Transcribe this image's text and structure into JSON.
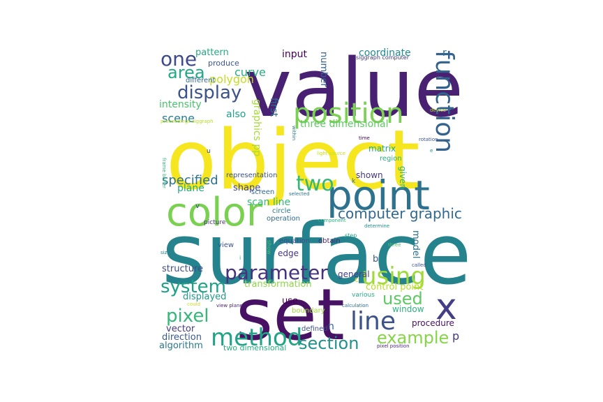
{
  "words": [
    {
      "text": "value",
      "color": "#482173"
    },
    {
      "text": "object",
      "color": "#f6e620"
    },
    {
      "text": "surface",
      "color": "#25838e"
    },
    {
      "text": "set",
      "color": "#471164"
    },
    {
      "text": "point",
      "color": "#2c728e"
    },
    {
      "text": "color",
      "color": "#7ad151"
    },
    {
      "text": "position",
      "color": "#7ad151"
    },
    {
      "text": "function",
      "color": "#33638d"
    },
    {
      "text": "one",
      "color": "#3e4a89"
    },
    {
      "text": "area",
      "color": "#22a884"
    },
    {
      "text": "display",
      "color": "#3b528b"
    },
    {
      "text": "using",
      "color": "#a0da39"
    },
    {
      "text": "x",
      "color": "#433e85"
    },
    {
      "text": "line",
      "color": "#3b528b"
    },
    {
      "text": "method",
      "color": "#20a486"
    },
    {
      "text": "parameter",
      "color": "#46327e"
    },
    {
      "text": "system",
      "color": "#1fa187"
    },
    {
      "text": "pixel",
      "color": "#35b779"
    },
    {
      "text": "two",
      "color": "#35b779"
    },
    {
      "text": "section",
      "color": "#21918c"
    },
    {
      "text": "example",
      "color": "#86d549"
    },
    {
      "text": "used",
      "color": "#5ec962"
    },
    {
      "text": "computer graphic",
      "color": "#31688e"
    },
    {
      "text": "specified",
      "color": "#2c728e"
    },
    {
      "text": "curve",
      "color": "#29af7f"
    },
    {
      "text": "scene",
      "color": "#287d8e"
    },
    {
      "text": "polygon",
      "color": "#c2df23"
    },
    {
      "text": "intensity",
      "color": "#4ac16d"
    },
    {
      "text": "coordinate",
      "color": "#238a8d"
    },
    {
      "text": "input",
      "color": "#440154"
    },
    {
      "text": "pattern",
      "color": "#25ab82"
    },
    {
      "text": "produce",
      "color": "#39568c"
    },
    {
      "text": "different",
      "color": "#31688e"
    },
    {
      "text": "also",
      "color": "#1fa088"
    },
    {
      "text": "graphics pp",
      "color": "#a5db36"
    },
    {
      "text": "first",
      "color": "#2d708e"
    },
    {
      "text": "number",
      "color": "#34618d"
    },
    {
      "text": "three dimensional",
      "color": "#5ec962"
    },
    {
      "text": "matrix",
      "color": "#22a884"
    },
    {
      "text": "region",
      "color": "#29af7f"
    },
    {
      "text": "shown",
      "color": "#443983"
    },
    {
      "text": "given",
      "color": "#2db27d"
    },
    {
      "text": "scan line",
      "color": "#35b779"
    },
    {
      "text": "plane",
      "color": "#22a884"
    },
    {
      "text": "shape",
      "color": "#414487"
    },
    {
      "text": "representation",
      "color": "#3b528b"
    },
    {
      "text": "screen",
      "color": "#31688e"
    },
    {
      "text": "selected",
      "color": "#2c728e"
    },
    {
      "text": "circle",
      "color": "#2a788e"
    },
    {
      "text": "operation",
      "color": "#2f6c8e"
    },
    {
      "text": "picture",
      "color": "#46337f"
    },
    {
      "text": "component",
      "color": "#2ab07f"
    },
    {
      "text": "determine",
      "color": "#21918c"
    },
    {
      "text": "step",
      "color": "#1fa088"
    },
    {
      "text": "model",
      "color": "#2c728e"
    },
    {
      "text": "view",
      "color": "#3a548c"
    },
    {
      "text": "equation",
      "color": "#3d4d8a"
    },
    {
      "text": "obtain",
      "color": "#482576"
    },
    {
      "text": "edge",
      "color": "#453581"
    },
    {
      "text": "structure",
      "color": "#3e4c8a"
    },
    {
      "text": "transformation",
      "color": "#8ed645"
    },
    {
      "text": "general",
      "color": "#424086"
    },
    {
      "text": "b",
      "color": "#39568c"
    },
    {
      "text": "c",
      "color": "#c8e020"
    },
    {
      "text": "control point",
      "color": "#b8de29"
    },
    {
      "text": "various",
      "color": "#25ac82"
    },
    {
      "text": "displayed",
      "color": "#1f9a8a"
    },
    {
      "text": "use",
      "color": "#440154"
    },
    {
      "text": "could",
      "color": "#c0df25"
    },
    {
      "text": "view plane",
      "color": "#482475"
    },
    {
      "text": "boundary",
      "color": "#9dd93b"
    },
    {
      "text": "calculation",
      "color": "#2e6e8e"
    },
    {
      "text": "window",
      "color": "#2db27d"
    },
    {
      "text": "vector",
      "color": "#453882"
    },
    {
      "text": "direction",
      "color": "#38598c"
    },
    {
      "text": "algorithm",
      "color": "#2a788e"
    },
    {
      "text": "two dimensional",
      "color": "#29af7f"
    },
    {
      "text": "defined",
      "color": "#3b528b"
    },
    {
      "text": "n",
      "color": "#33638d"
    },
    {
      "text": "procedure",
      "color": "#471063"
    },
    {
      "text": "p",
      "color": "#453781"
    },
    {
      "text": "pixel position",
      "color": "#482878"
    },
    {
      "text": "called",
      "color": "#3c4f8a"
    },
    {
      "text": "three",
      "color": "#52c569"
    },
    {
      "text": "r",
      "color": "#2e6f8e"
    },
    {
      "text": "siggraph computer",
      "color": "#443a83"
    },
    {
      "text": "device",
      "color": "#addc30"
    },
    {
      "text": "time",
      "color": "#440154"
    },
    {
      "text": "rotation",
      "color": "#3b528b"
    },
    {
      "text": "e",
      "color": "#20928c"
    },
    {
      "text": "k",
      "color": "#2e6e8e"
    },
    {
      "text": "light source",
      "color": "#c5e021"
    },
    {
      "text": "within",
      "color": "#2a768e"
    },
    {
      "text": "u",
      "color": "#3f4788"
    },
    {
      "text": "proceedings siggraph",
      "color": "#b5de2b"
    },
    {
      "text": "frame buffer",
      "color": "#32b67a"
    },
    {
      "text": "v",
      "color": "#3e4989"
    },
    {
      "text": "size",
      "color": "#26828e"
    },
    {
      "text": "i",
      "color": "#35b779"
    },
    {
      "text": "show",
      "color": "#4ac16d"
    }
  ]
}
